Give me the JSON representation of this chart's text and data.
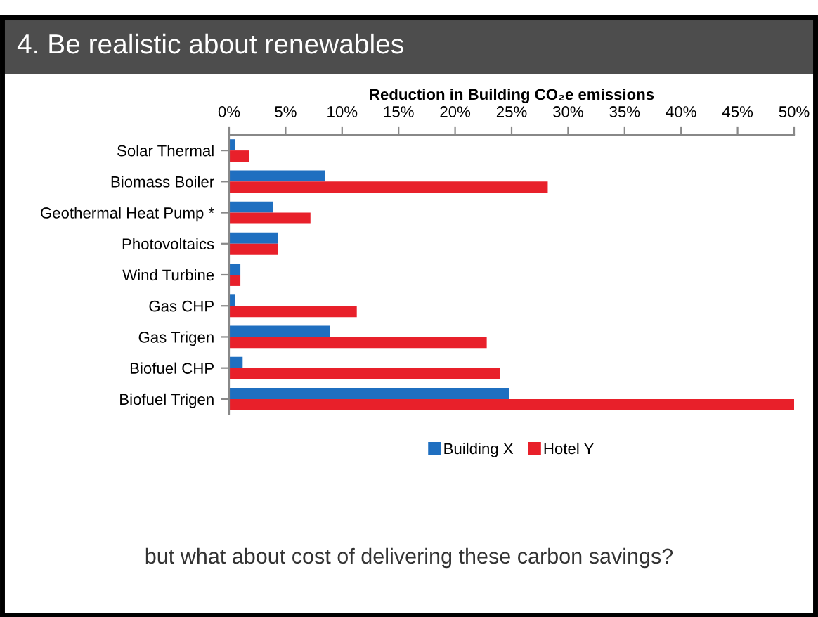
{
  "chart_data": {
    "type": "bar",
    "orientation": "horizontal",
    "title": "4. Be realistic about renewables",
    "subtitle": "Reduction in Building CO₂e emissions",
    "categories": [
      "Solar Thermal",
      "Biomass Boiler",
      "Geothermal Heat Pump *",
      "Photovoltaics",
      "Wind Turbine",
      "Gas CHP",
      "Gas Trigen",
      "Biofuel CHP",
      "Biofuel Trigen"
    ],
    "series": [
      {
        "name": "Building X",
        "color": "#1f6fc0",
        "values": [
          0.55,
          8.5,
          3.9,
          4.3,
          1.0,
          0.55,
          8.9,
          1.2,
          24.8
        ]
      },
      {
        "name": "Hotel Y",
        "color": "#e8202a",
        "values": [
          1.8,
          28.2,
          7.2,
          4.3,
          1.0,
          11.3,
          22.8,
          24.0,
          50
        ]
      }
    ],
    "xlim": [
      0,
      50
    ],
    "xticks": [
      {
        "value": 0,
        "label": "0%"
      },
      {
        "value": 5,
        "label": "5%"
      },
      {
        "value": 10,
        "label": "10%"
      },
      {
        "value": 15,
        "label": "15%"
      },
      {
        "value": 20,
        "label": "20%"
      },
      {
        "value": 25,
        "label": "25%"
      },
      {
        "value": 30,
        "label": "30%"
      },
      {
        "value": 35,
        "label": "35%"
      },
      {
        "value": 40,
        "label": "40%"
      },
      {
        "value": 45,
        "label": "45%"
      },
      {
        "value": 50,
        "label": "50%"
      }
    ],
    "legend": "bottom",
    "grid": false,
    "annotations": [
      "but what about cost of delivering these carbon savings?"
    ]
  }
}
